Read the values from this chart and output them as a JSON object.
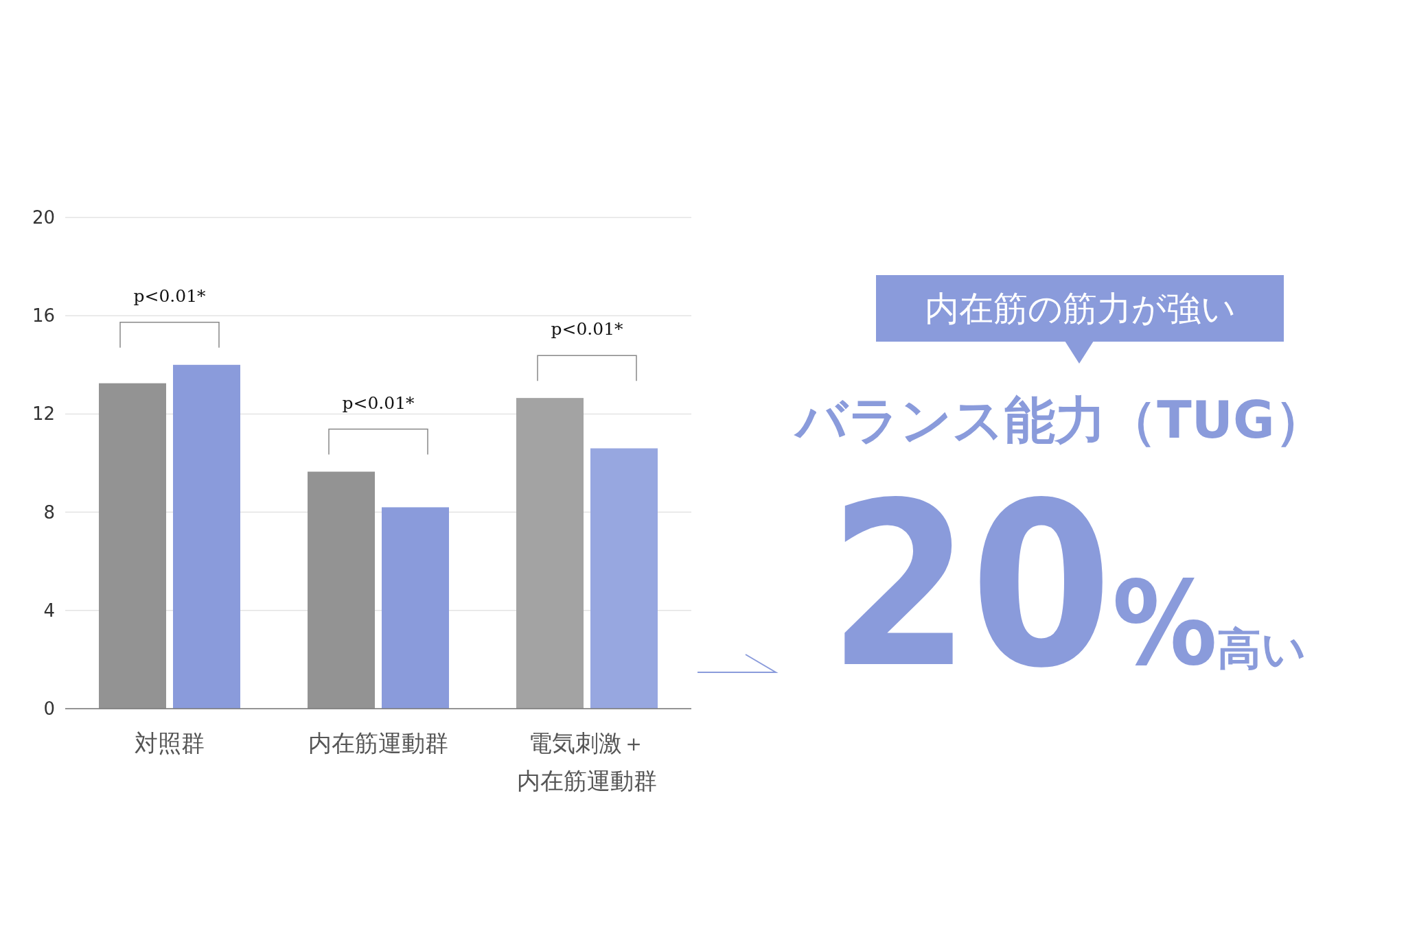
{
  "chart_data": [
    {
      "type": "bar",
      "categories": [
        "対照群",
        "内在筋運動群",
        "電気刺激＋内在筋運動群"
      ],
      "series": [
        {
          "colors": [
            "#939393",
            "#939393",
            "#a3a3a3"
          ],
          "values": [
            13.25,
            9.65,
            12.65
          ]
        },
        {
          "colors": [
            "#8a9bdb",
            "#8a9bdb",
            "#97a7e0"
          ],
          "values": [
            14.0,
            8.2,
            10.6
          ]
        }
      ],
      "ylim": [
        0,
        20
      ],
      "yticks": [
        0,
        4,
        8,
        12,
        16,
        20
      ],
      "grid": "y",
      "annotations": [
        "p<0.01*",
        "p<0.01*",
        "p<0.01*"
      ]
    },
    {
      "type": "other",
      "annotations": [
        "内在筋の筋力が強い",
        "バランス能力（TUG）",
        "20%高い"
      ]
    }
  ]
}
